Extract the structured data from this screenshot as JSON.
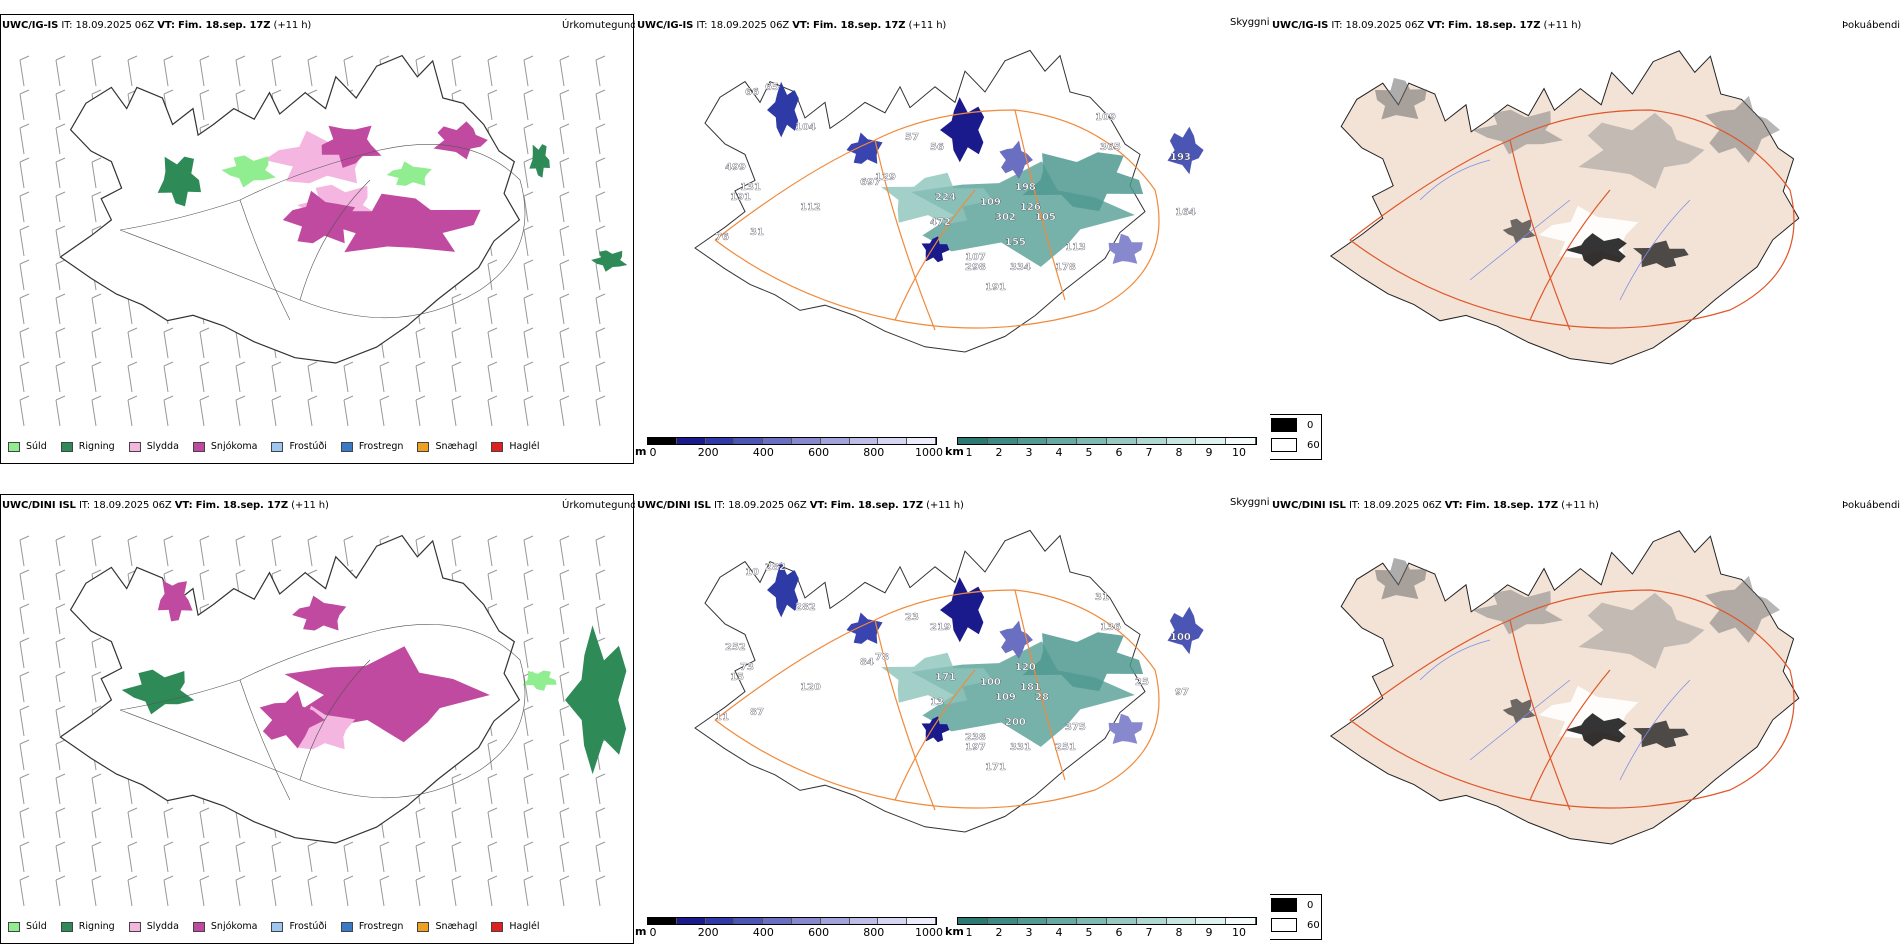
{
  "rows": [
    {
      "model": "UWC/IG-IS",
      "it_label": "IT:",
      "it_value": "18.09.2025 06Z",
      "vt_label": "VT:",
      "vt_value": "Fim. 18.sep. 17Z",
      "lead": "(+11 h)"
    },
    {
      "model": "UWC/DINI ISL",
      "it_label": "IT:",
      "it_value": "18.09.2025 06Z",
      "vt_label": "VT:",
      "vt_value": "Fim. 18.sep. 17Z",
      "lead": "(+11 h)"
    }
  ],
  "panel_titles": {
    "precip": "Úrkomutegund",
    "visibility": "Skyggni",
    "fog": "Þokuábendi"
  },
  "precip_legend": [
    {
      "label": "Súld",
      "color": "#90ee90"
    },
    {
      "label": "Rigning",
      "color": "#2e8b57"
    },
    {
      "label": "Slydda",
      "color": "#f4b6e0"
    },
    {
      "label": "Snjókoma",
      "color": "#c04aa0"
    },
    {
      "label": "Frostúði",
      "color": "#9ec6f0"
    },
    {
      "label": "Frostregn",
      "color": "#3a78c8"
    },
    {
      "label": "Snæhagl",
      "color": "#f0a020"
    },
    {
      "label": "Haglél",
      "color": "#e02020"
    }
  ],
  "ceiling_scale": {
    "unit": "m",
    "labels": [
      "0",
      "200",
      "400",
      "600",
      "800",
      "1000"
    ],
    "colors": [
      "#000000",
      "#1a1a8c",
      "#2e3aa6",
      "#4b55b4",
      "#6a6fc2",
      "#8888cf",
      "#a3a3dc",
      "#bdbde8",
      "#d6d6f2",
      "#ececfa"
    ]
  },
  "vis_scale": {
    "unit": "km",
    "labels": [
      "1",
      "2",
      "3",
      "4",
      "5",
      "6",
      "7",
      "8",
      "9",
      "10"
    ],
    "colors": [
      "#2a7a72",
      "#3d8a82",
      "#529a92",
      "#68aaa2",
      "#7fbab2",
      "#97c9c2",
      "#afd8d2",
      "#c7e6e1",
      "#def2ef",
      "#f4fbfa"
    ]
  },
  "fog_scale": {
    "labels": [
      "0",
      "60"
    ],
    "colors": [
      "#000000",
      "#ffffff"
    ]
  },
  "map_colors": {
    "snow": "#c04aa0",
    "sleet": "#f4b6e0",
    "rain": "#2e8b57",
    "drizzle": "#90ee90",
    "land_fog": "#f3e3d6",
    "roads_vis": "#f08a3c",
    "roads_fog": "#e0572a",
    "rivers": "#7d8fe8"
  },
  "ceiling_labels": [
    [
      "66",
      "65",
      "104",
      "499",
      "131",
      "191",
      "76",
      "31",
      "112",
      "697",
      "129",
      "57",
      "56",
      "224",
      "472",
      "109",
      "198",
      "126",
      "105",
      "302",
      "155",
      "107",
      "298",
      "334",
      "191",
      "113",
      "178",
      "109",
      "365",
      "193",
      "164"
    ],
    [
      "10",
      "282",
      "282",
      "252",
      "73",
      "15",
      "11",
      "87",
      "120",
      "84",
      "78",
      "23",
      "219",
      "171",
      "13",
      "100",
      "120",
      "181",
      "28",
      "109",
      "200",
      "238",
      "197",
      "331",
      "171",
      "375",
      "251",
      "31",
      "136",
      "100",
      "97",
      "25"
    ]
  ]
}
